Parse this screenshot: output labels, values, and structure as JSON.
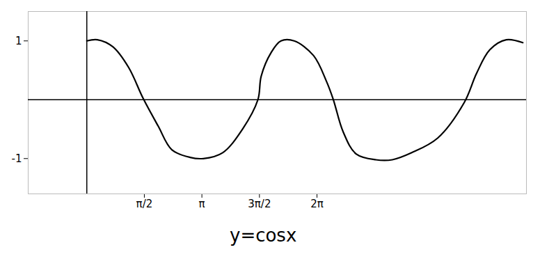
{
  "chart_data": {
    "type": "line",
    "title": "y=cosx",
    "x": [
      0,
      0.29,
      0.71,
      1.14,
      1.54,
      1.95,
      2.32,
      2.82,
      3.18,
      3.71,
      4.25,
      4.67,
      4.76,
      5.03,
      5.3,
      5.66,
      6.19,
      6.55,
      6.73,
      7.0,
      7.35,
      7.89,
      8.34,
      8.87,
      9.58,
      10.3,
      10.64,
      11.0,
      11.45,
      11.9
    ],
    "values": [
      1,
      1.02,
      0.9,
      0.55,
      0.02,
      -0.45,
      -0.85,
      -0.98,
      -1.0,
      -0.9,
      -0.5,
      0.0,
      0.4,
      0.8,
      1.0,
      1.0,
      0.75,
      0.3,
      0.0,
      -0.55,
      -0.92,
      -1.02,
      -1.02,
      -0.9,
      -0.65,
      -0.05,
      0.45,
      0.85,
      1.02,
      0.97
    ],
    "color": "#000000",
    "xlim": [
      -1.6,
      12
    ],
    "ylim": [
      -1.6,
      1.5
    ],
    "xticks": [
      {
        "value": 1.5708,
        "label": "π/2"
      },
      {
        "value": 3.1416,
        "label": "π"
      },
      {
        "value": 4.7124,
        "label": "3π/2"
      },
      {
        "value": 6.2832,
        "label": "2π"
      }
    ],
    "yticks": [
      -1,
      1
    ],
    "grid": false
  }
}
